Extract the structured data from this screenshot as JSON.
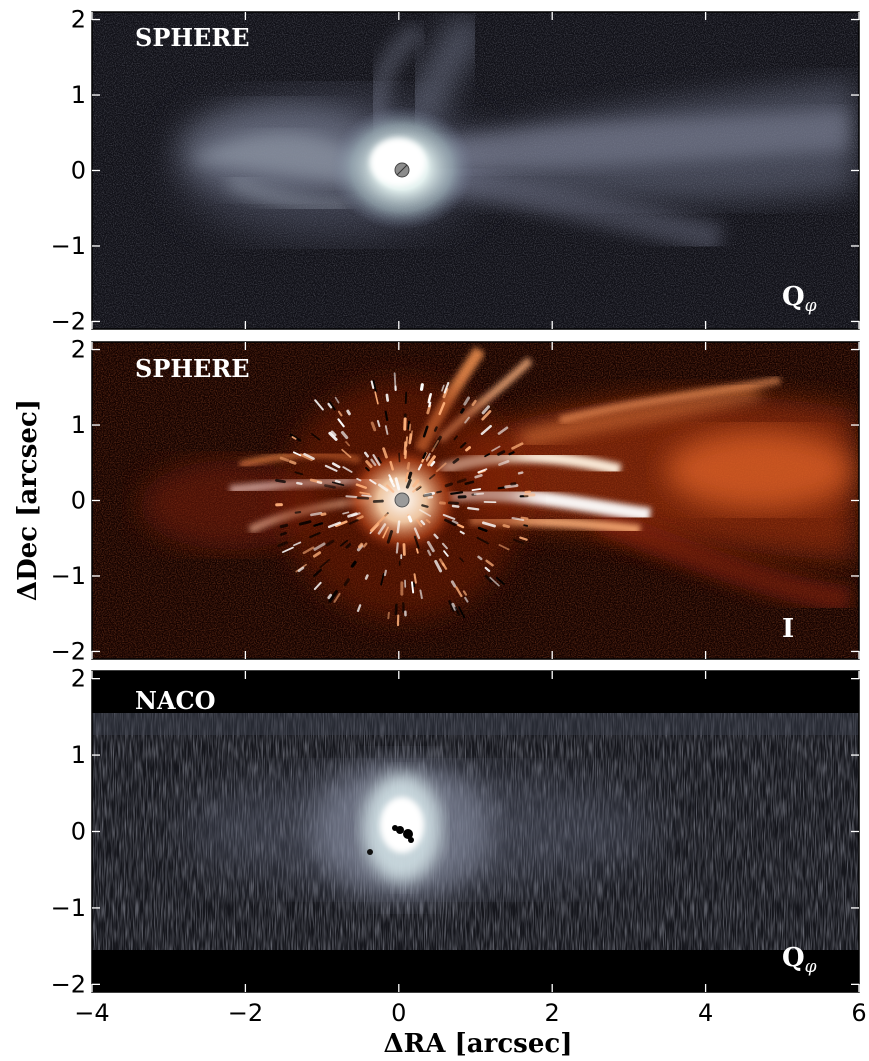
{
  "figure": {
    "xlabel": "ΔRA [arcsec]",
    "ylabel": "ΔDec [arcsec]"
  },
  "chart_data": [
    {
      "type": "heatmap",
      "instrument": "SPHERE",
      "mode": "Q",
      "mode_subscript": "φ",
      "colormap": "bone",
      "xlim": [
        -4,
        6
      ],
      "ylim": [
        -2.1,
        2.1
      ],
      "yticks": [
        "−2",
        "−1",
        "0",
        "1",
        "2"
      ],
      "features": [
        {
          "label": "",
          "center": [
            0,
            0
          ],
          "extent": [
            0.6,
            0.5
          ],
          "intensity": 1.0
        },
        {
          "label": "",
          "center": [
            -1.3,
            0.3
          ],
          "extent": [
            1.4,
            0.7
          ],
          "intensity": 0.45
        },
        {
          "label": "",
          "center": [
            2.5,
            0.4
          ],
          "extent": [
            3.0,
            0.6
          ],
          "intensity": 0.5
        },
        {
          "label": "",
          "center": [
            0.6,
            1.4
          ],
          "extent": [
            0.5,
            0.6
          ],
          "intensity": 0.35
        }
      ]
    },
    {
      "type": "heatmap",
      "instrument": "SPHERE",
      "mode": "I",
      "mode_subscript": "",
      "colormap": "gist_heat",
      "xlim": [
        -4,
        6
      ],
      "ylim": [
        -2.1,
        2.1
      ],
      "yticks": [
        "−2",
        "−1",
        "0",
        "1",
        "2"
      ],
      "features": [
        {
          "label": "",
          "center": [
            0,
            -0.2
          ],
          "extent": [
            0.9,
            0.9
          ],
          "intensity": 0.9
        },
        {
          "label": "",
          "center": [
            2.0,
            0.1
          ],
          "extent": [
            1.5,
            0.5
          ],
          "intensity": 1.0
        },
        {
          "label": "",
          "center": [
            4.8,
            0.4
          ],
          "extent": [
            1.3,
            0.6
          ],
          "intensity": 0.7
        },
        {
          "label": "",
          "center": [
            -1.6,
            0.1
          ],
          "extent": [
            1.0,
            0.4
          ],
          "intensity": 0.7
        },
        {
          "label": "",
          "center": [
            1.0,
            1.5
          ],
          "extent": [
            0.6,
            0.5
          ],
          "intensity": 0.6
        }
      ]
    },
    {
      "type": "heatmap",
      "instrument": "NACO",
      "mode": "Q",
      "mode_subscript": "φ",
      "colormap": "bone",
      "xlim": [
        -4,
        6
      ],
      "ylim": [
        -2.1,
        2.1
      ],
      "yticks": [
        "−2",
        "−1",
        "0",
        "1",
        "2"
      ],
      "features": [
        {
          "label": "",
          "center": [
            0,
            0.1
          ],
          "extent": [
            0.6,
            0.6
          ],
          "intensity": 1.0
        },
        {
          "label": "",
          "center": [
            0.5,
            0.0
          ],
          "extent": [
            2.5,
            0.9
          ],
          "intensity": 0.35
        }
      ]
    }
  ],
  "xaxis": {
    "ticks": [
      "−4",
      "−2",
      "0",
      "2",
      "4",
      "6"
    ]
  }
}
